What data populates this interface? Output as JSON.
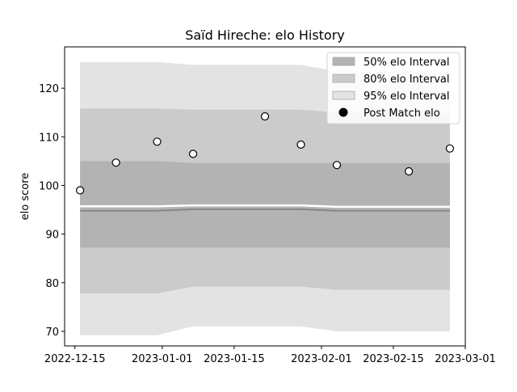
{
  "chart_data": {
    "type": "area",
    "title": "Saïd Hireche: elo History",
    "xlabel": "",
    "ylabel": "elo score",
    "xlim": [
      "2022-12-13",
      "2023-03-01"
    ],
    "ylim": [
      67,
      128.5
    ],
    "x_ticks": [
      "2022-12-15",
      "2023-01-01",
      "2023-01-15",
      "2023-02-01",
      "2023-02-15",
      "2023-03-01"
    ],
    "y_ticks": [
      70,
      80,
      90,
      100,
      110,
      120
    ],
    "legend_position": "top-right",
    "bands": [
      {
        "name": "95% elo Interval",
        "color": "#e3e3e3",
        "x": [
          "2022-12-16",
          "2022-12-31",
          "2023-01-07",
          "2023-01-28",
          "2023-02-04",
          "2023-02-26"
        ],
        "lower": [
          69.2,
          69.2,
          71.0,
          71.0,
          70.0,
          70.0
        ],
        "upper": [
          125.4,
          125.4,
          124.8,
          124.8,
          123.5,
          123.5
        ]
      },
      {
        "name": "80% elo Interval",
        "color": "#cbcbcb",
        "x": [
          "2022-12-16",
          "2022-12-31",
          "2023-01-07",
          "2023-01-28",
          "2023-02-04",
          "2023-02-26"
        ],
        "lower": [
          77.8,
          77.8,
          79.2,
          79.2,
          78.5,
          78.5
        ],
        "upper": [
          115.8,
          115.8,
          115.6,
          115.6,
          115.0,
          115.0
        ]
      },
      {
        "name": "50% elo Interval",
        "color": "#b3b3b3",
        "x": [
          "2022-12-16",
          "2022-12-31",
          "2023-01-07",
          "2023-01-28",
          "2023-02-04",
          "2023-02-26"
        ],
        "lower": [
          87.2,
          87.2,
          87.2,
          87.2,
          87.2,
          87.2
        ],
        "upper": [
          105.0,
          105.0,
          104.6,
          104.6,
          104.6,
          104.6
        ]
      }
    ],
    "mean_line": {
      "color": "#888888",
      "x": [
        "2022-12-16",
        "2022-12-31",
        "2023-01-07",
        "2023-01-28",
        "2023-02-04",
        "2023-02-26"
      ],
      "y": [
        94.8,
        94.8,
        95.1,
        95.1,
        94.8,
        94.8
      ]
    },
    "white_line": {
      "color": "#ffffff",
      "x": [
        "2022-12-16",
        "2022-12-31",
        "2023-01-07",
        "2023-01-28",
        "2023-02-04",
        "2023-02-26"
      ],
      "y": [
        95.7,
        95.7,
        95.9,
        95.9,
        95.6,
        95.6
      ]
    },
    "series": [
      {
        "name": "Post Match elo",
        "points": [
          {
            "x": "2022-12-16",
            "y": 99.0
          },
          {
            "x": "2022-12-23",
            "y": 104.7
          },
          {
            "x": "2022-12-31",
            "y": 109.0
          },
          {
            "x": "2023-01-07",
            "y": 106.5
          },
          {
            "x": "2023-01-21",
            "y": 114.2
          },
          {
            "x": "2023-01-28",
            "y": 108.4
          },
          {
            "x": "2023-02-04",
            "y": 104.2
          },
          {
            "x": "2023-02-18",
            "y": 102.9
          },
          {
            "x": "2023-02-26",
            "y": 107.6
          }
        ]
      }
    ]
  }
}
